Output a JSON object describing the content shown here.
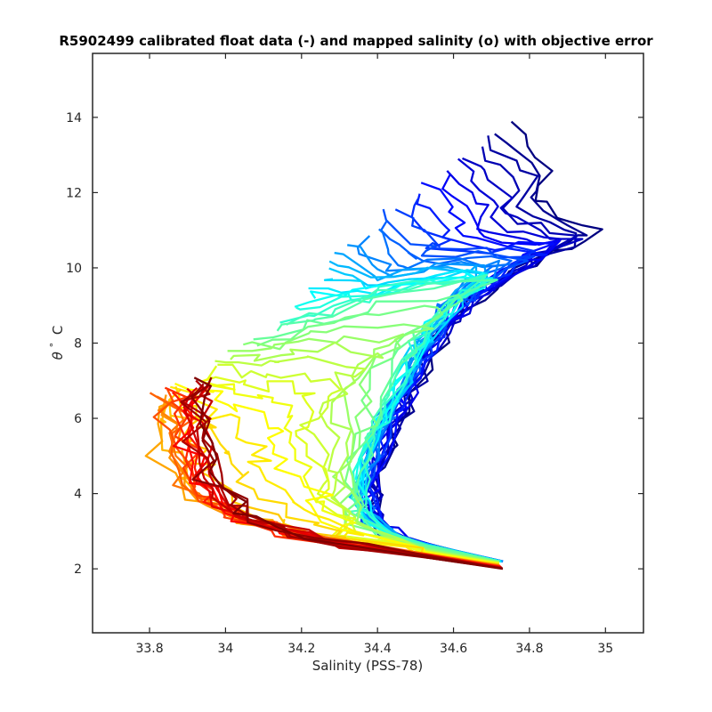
{
  "chart_data": {
    "type": "line",
    "title": "R5902499 calibrated float data (-) and mapped salinity (o) with objective error",
    "xlabel": "Salinity (PSS-78)",
    "ylabel_symbol": "θ",
    "ylabel_degree": "°",
    "ylabel_unit": "C",
    "xlim": [
      33.65,
      35.1
    ],
    "ylim": [
      0.3,
      15.7
    ],
    "xticks": [
      33.8,
      34,
      34.2,
      34.4,
      34.6,
      34.8,
      35
    ],
    "xtick_labels": [
      "33.8",
      "34",
      "34.2",
      "34.4",
      "34.6",
      "34.8",
      "35"
    ],
    "yticks": [
      2,
      4,
      6,
      8,
      10,
      12,
      14
    ],
    "ytick_labels": [
      "2",
      "4",
      "6",
      "8",
      "10",
      "12",
      "14"
    ],
    "grid": false,
    "colormap": "jet",
    "series_count": 60,
    "profile_templates": {
      "blue_upper": [
        [
          34.73,
          2.2
        ],
        [
          34.6,
          2.45
        ],
        [
          34.48,
          2.75
        ],
        [
          34.41,
          3.1
        ],
        [
          34.39,
          3.6
        ],
        [
          34.4,
          4.3
        ],
        [
          34.43,
          5.2
        ],
        [
          34.47,
          6.2
        ],
        [
          34.52,
          7.2
        ],
        [
          34.57,
          8.1
        ],
        [
          34.62,
          8.8
        ],
        [
          34.7,
          9.5
        ],
        [
          34.8,
          10.1
        ],
        [
          34.9,
          10.6
        ],
        [
          34.98,
          11.05
        ],
        [
          34.88,
          11.35
        ],
        [
          34.82,
          11.9
        ],
        [
          34.85,
          12.7
        ],
        [
          34.8,
          13.3
        ],
        [
          34.75,
          13.8
        ]
      ],
      "cyan_mid": [
        [
          34.73,
          2.2
        ],
        [
          34.58,
          2.5
        ],
        [
          34.46,
          2.8
        ],
        [
          34.38,
          3.3
        ],
        [
          34.36,
          4.0
        ],
        [
          34.38,
          5.0
        ],
        [
          34.42,
          6.0
        ],
        [
          34.47,
          7.0
        ],
        [
          34.52,
          8.0
        ],
        [
          34.58,
          8.9
        ],
        [
          34.65,
          9.6
        ],
        [
          34.72,
          10.1
        ],
        [
          34.6,
          10.1
        ],
        [
          34.45,
          10.0
        ],
        [
          34.38,
          10.4
        ],
        [
          34.36,
          10.9
        ]
      ],
      "yellow_mid": [
        [
          34.72,
          2.2
        ],
        [
          34.55,
          2.55
        ],
        [
          34.42,
          2.9
        ],
        [
          34.35,
          3.4
        ],
        [
          34.34,
          4.0
        ],
        [
          34.37,
          5.0
        ],
        [
          34.41,
          6.0
        ],
        [
          34.45,
          7.0
        ],
        [
          34.5,
          8.0
        ],
        [
          34.56,
          8.8
        ],
        [
          34.65,
          9.4
        ],
        [
          34.72,
          9.8
        ],
        [
          34.55,
          9.6
        ],
        [
          34.4,
          9.3
        ],
        [
          34.3,
          8.9
        ],
        [
          34.22,
          8.6
        ],
        [
          34.12,
          8.3
        ]
      ],
      "orange_low": [
        [
          34.72,
          2.1
        ],
        [
          34.5,
          2.4
        ],
        [
          34.3,
          2.7
        ],
        [
          34.15,
          3.0
        ],
        [
          34.05,
          3.3
        ],
        [
          33.95,
          3.7
        ],
        [
          33.88,
          4.2
        ],
        [
          33.85,
          5.0
        ],
        [
          33.83,
          5.8
        ],
        [
          33.82,
          6.5
        ]
      ],
      "red_low": [
        [
          34.73,
          2.0
        ],
        [
          34.55,
          2.3
        ],
        [
          34.35,
          2.6
        ],
        [
          34.2,
          2.9
        ],
        [
          34.08,
          3.3
        ],
        [
          34.0,
          3.8
        ],
        [
          33.97,
          4.5
        ],
        [
          33.96,
          5.5
        ],
        [
          33.95,
          6.5
        ],
        [
          33.96,
          7.0
        ]
      ]
    }
  }
}
